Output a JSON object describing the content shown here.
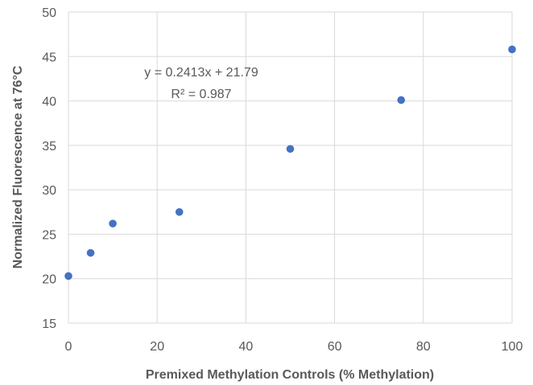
{
  "chart_data": {
    "type": "scatter",
    "xlabel": "Premixed Methylation Controls (% Methylation)",
    "ylabel": "Normalized Fluorescence at 76°C",
    "xlim": [
      0,
      100
    ],
    "ylim": [
      15,
      50
    ],
    "x_ticks": [
      0,
      20,
      40,
      60,
      80,
      100
    ],
    "y_ticks": [
      15,
      20,
      25,
      30,
      35,
      40,
      45,
      50
    ],
    "grid": true,
    "series": [
      {
        "color": "#4472c4",
        "points": [
          {
            "x": 0,
            "y": 20.3
          },
          {
            "x": 5,
            "y": 22.9
          },
          {
            "x": 10,
            "y": 26.2
          },
          {
            "x": 25,
            "y": 27.5
          },
          {
            "x": 50,
            "y": 34.6
          },
          {
            "x": 75,
            "y": 40.1
          },
          {
            "x": 100,
            "y": 45.8
          }
        ]
      }
    ],
    "annotations": {
      "equation": "y = 0.2413x + 21.79",
      "r_squared": "R² = 0.987"
    }
  }
}
